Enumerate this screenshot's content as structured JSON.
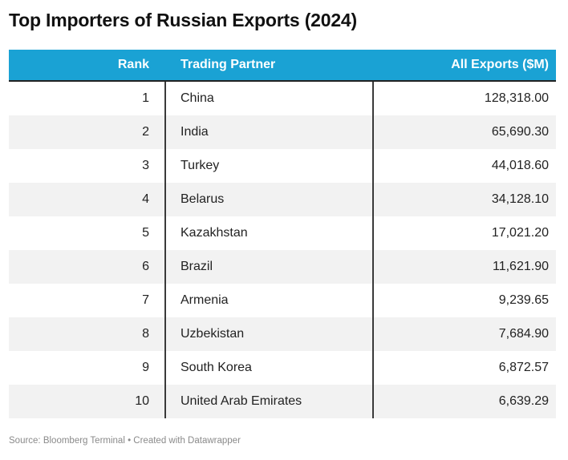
{
  "title": "Top Importers of Russian Exports (2024)",
  "footer": "Source: Bloomberg Terminal • Created with Datawrapper",
  "colors": {
    "header_bg": "#1aa2d4",
    "header_text": "#ffffff",
    "stripe": "#f2f2f2"
  },
  "chart_data": {
    "type": "table",
    "title": "Top Importers of Russian Exports (2024)",
    "columns": [
      "Rank",
      "Trading Partner",
      "All Exports ($M)"
    ],
    "rows": [
      [
        "1",
        "China",
        "128,318.00"
      ],
      [
        "2",
        "India",
        "65,690.30"
      ],
      [
        "3",
        "Turkey",
        "44,018.60"
      ],
      [
        "4",
        "Belarus",
        "34,128.10"
      ],
      [
        "5",
        "Kazakhstan",
        "17,021.20"
      ],
      [
        "6",
        "Brazil",
        "11,621.90"
      ],
      [
        "7",
        "Armenia",
        "9,239.65"
      ],
      [
        "8",
        "Uzbekistan",
        "7,684.90"
      ],
      [
        "9",
        "South Korea",
        "6,872.57"
      ],
      [
        "10",
        "United Arab Emirates",
        "6,639.29"
      ]
    ],
    "source": "Source: Bloomberg Terminal • Created with Datawrapper"
  }
}
